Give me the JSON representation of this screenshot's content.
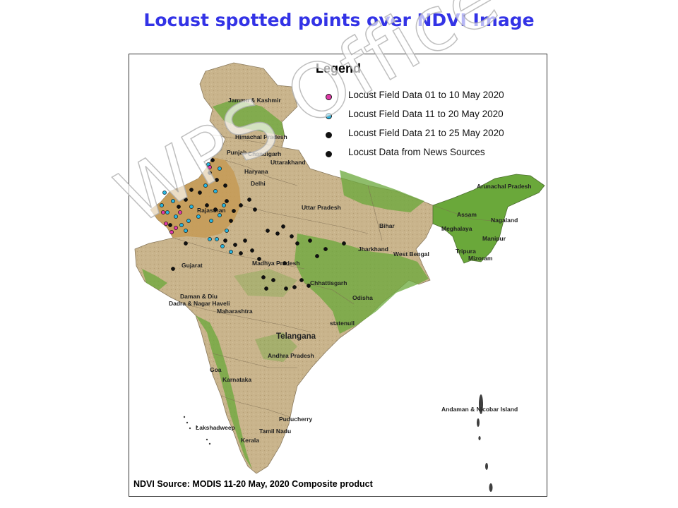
{
  "title": "Locust spotted  points over NDVI Image",
  "legend": {
    "title": "Legend",
    "items": [
      {
        "label": "Locust Field Data 01 to 10 May 2020",
        "color": "#e03aa8"
      },
      {
        "label": "Locust Field Data 11 to 20 May 2020",
        "color": "#29b5e0"
      },
      {
        "label": "Locust Field Data 21 to 25 May 2020",
        "color": "#111111"
      },
      {
        "label": "Locust Data from News Sources",
        "color": "#111111"
      }
    ]
  },
  "source": "NDVI Source: MODIS 11-20 May, 2020 Composite product",
  "watermark": "WPS Office",
  "colors": {
    "title": "#3333e6",
    "land": "#c8b38a",
    "vegetation": "#6aa83a",
    "desert": "#c69a55"
  },
  "map_labels": {
    "jk": "Jammu & Kashmir",
    "hp": "Himachal Pradesh",
    "punjab": "Punjab",
    "chandigarh": "Chandigarh",
    "uttarakhand": "Uttarakhand",
    "haryana": "Haryana",
    "delhi": "Delhi",
    "rajasthan": "Rajasthan",
    "up": "Uttar Pradesh",
    "arunachal": "Arunachal Pradesh",
    "assam": "Assam",
    "nagaland": "Nagaland",
    "meghalaya": "Meghalaya",
    "manipur": "Manipur",
    "tripura": "Tripura",
    "mizoram": "Mizoram",
    "bihar": "Bihar",
    "jharkhand": "Jharkhand",
    "wb": "West Bengal",
    "gujarat": "Gujarat",
    "mp": "Madhya Pradesh",
    "chhattisgarh": "Chhattisgarh",
    "odisha": "Odisha",
    "daman": "Daman & Diu",
    "dnh": "Dadra & Nagar Haveli",
    "maharashtra": "Maharashtra",
    "statenull": "statenull",
    "telangana": "Telangana",
    "ap": "Andhra Pradesh",
    "goa": "Goa",
    "karnataka": "Karnataka",
    "puducherry": "Puducherry",
    "tn": "Tamil Nadu",
    "kerala": "Kerala",
    "lakshadweep": "Lakshadweep",
    "andaman": "Andaman & Nicobar Island"
  }
}
